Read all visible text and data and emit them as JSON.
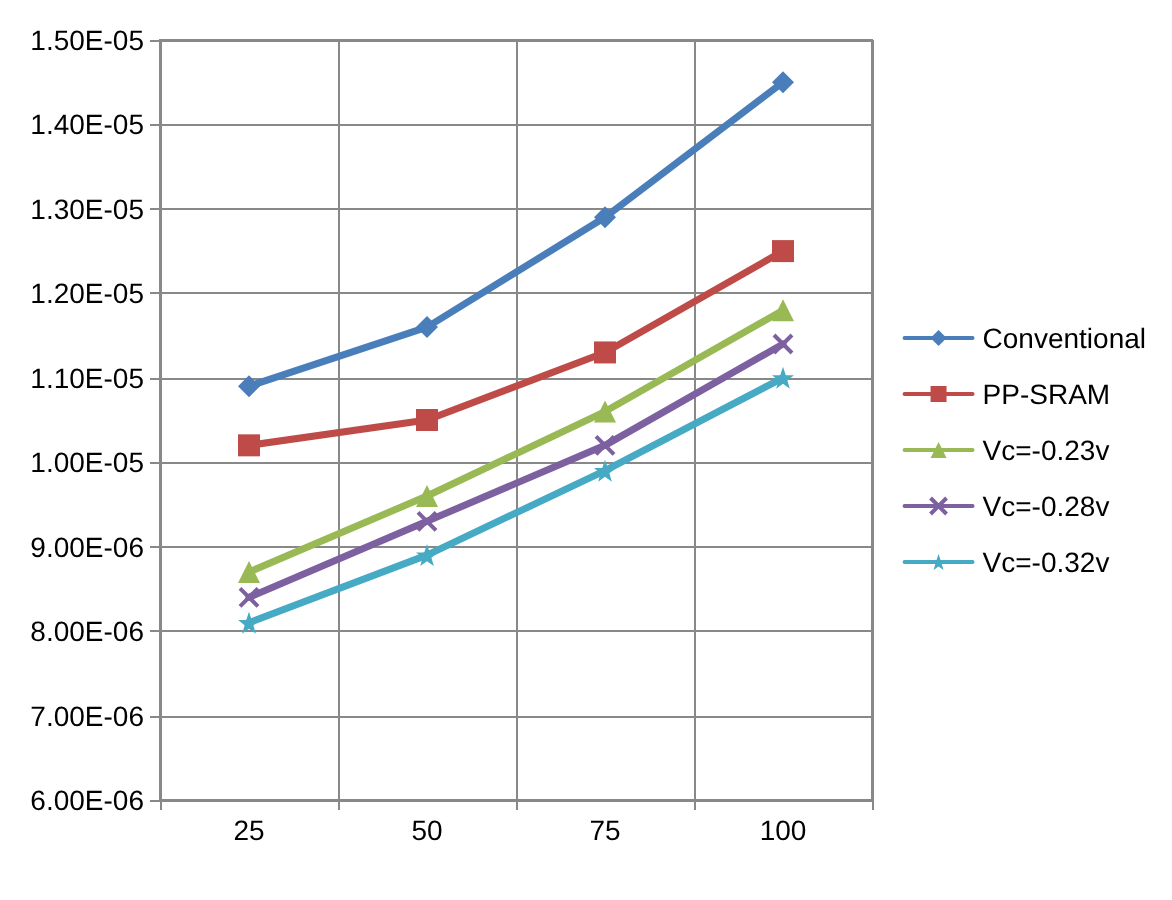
{
  "chart_data": {
    "type": "line",
    "categories": [
      "25",
      "50",
      "75",
      "100"
    ],
    "series": [
      {
        "name": "Conventional",
        "color": "#4a7ebb",
        "marker": "diamond",
        "values": [
          1.09e-05,
          1.16e-05,
          1.29e-05,
          1.45e-05
        ]
      },
      {
        "name": "PP-SRAM",
        "color": "#be4b48",
        "marker": "square",
        "values": [
          1.02e-05,
          1.05e-05,
          1.13e-05,
          1.25e-05
        ]
      },
      {
        "name": "Vc=-0.23v",
        "color": "#98b954",
        "marker": "triangle",
        "values": [
          8.7e-06,
          9.6e-06,
          1.06e-05,
          1.18e-05
        ]
      },
      {
        "name": "Vc=-0.28v",
        "color": "#7d60a0",
        "marker": "cross",
        "values": [
          8.4e-06,
          9.3e-06,
          1.02e-05,
          1.14e-05
        ]
      },
      {
        "name": "Vc=-0.32v",
        "color": "#46aac5",
        "marker": "star",
        "values": [
          8.1e-06,
          8.9e-06,
          9.9e-06,
          1.1e-05
        ]
      }
    ],
    "ylim": [
      6e-06,
      1.5e-05
    ],
    "yticks": [
      {
        "value": 6e-06,
        "label": "6.00E-06"
      },
      {
        "value": 7e-06,
        "label": "7.00E-06"
      },
      {
        "value": 8e-06,
        "label": "8.00E-06"
      },
      {
        "value": 9e-06,
        "label": "9.00E-06"
      },
      {
        "value": 1e-05,
        "label": "1.00E-05"
      },
      {
        "value": 1.1e-05,
        "label": "1.10E-05"
      },
      {
        "value": 1.2e-05,
        "label": "1.20E-05"
      },
      {
        "value": 1.3e-05,
        "label": "1.30E-05"
      },
      {
        "value": 1.4e-05,
        "label": "1.40E-05"
      },
      {
        "value": 1.5e-05,
        "label": "1.50E-05"
      }
    ],
    "grid": true,
    "legend": "right",
    "line_style": "solid"
  }
}
